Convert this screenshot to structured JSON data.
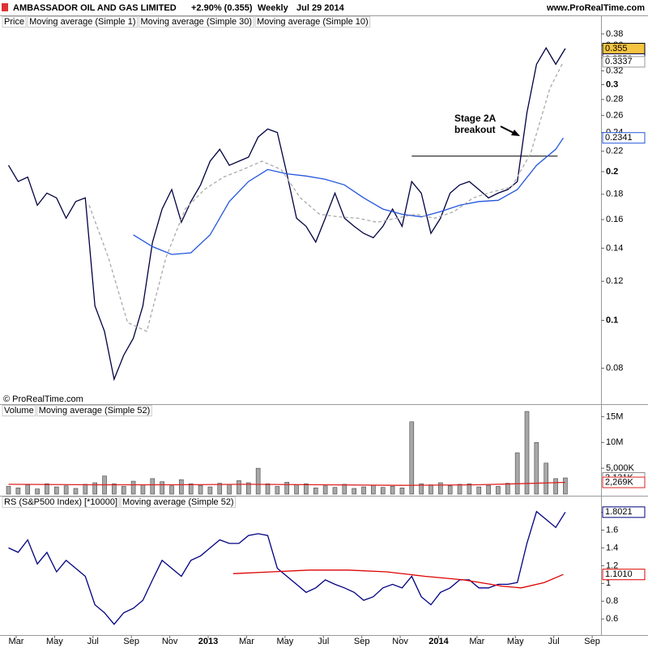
{
  "chart_data": [
    {
      "type": "line",
      "title": "AMBASSADOR OIL AND GAS LIMITED",
      "change": "+2.90% (0.355)",
      "period": "Weekly",
      "date": "Jul 29 2014",
      "source": "www.ProRealTime.com",
      "copyright": "© ProRealTime.com",
      "price_label": "Price",
      "log_scale": true,
      "xlim": [
        1.156,
        32.46
      ],
      "ylim": [
        0.07,
        0.393
      ],
      "yticks": [
        0.38,
        0.36,
        0.34,
        0.32,
        0.3,
        0.28,
        0.26,
        0.24,
        0.22,
        0.2,
        0.18,
        0.16,
        0.14,
        0.12,
        0.1,
        0.08
      ],
      "series": [
        {
          "name": "Moving average (Simple 1)",
          "color": "#000040",
          "style": "solid",
          "x": [
            1.6,
            2.1,
            2.6,
            3.1,
            3.6,
            4.1,
            4.6,
            5.1,
            5.6,
            6.1,
            6.6,
            7.1,
            7.6,
            8.1,
            8.6,
            9.1,
            9.6,
            10.1,
            10.6,
            11.1,
            11.6,
            12.1,
            12.6,
            13.1,
            13.6,
            14.1,
            14.6,
            15.1,
            15.6,
            16.1,
            16.6,
            17.1,
            17.6,
            18.1,
            18.6,
            19.1,
            19.6,
            20.1,
            20.6,
            21.1,
            21.6,
            22.1,
            22.6,
            23.1,
            23.6,
            24.1,
            24.6,
            25.1,
            25.6,
            26.1,
            26.6,
            27.1,
            27.6,
            28.1,
            28.6,
            29.1,
            29.6,
            30.1,
            30.6
          ],
          "values": [
            0.206,
            0.191,
            0.195,
            0.171,
            0.181,
            0.177,
            0.161,
            0.174,
            0.177,
            0.107,
            0.095,
            0.076,
            0.085,
            0.092,
            0.107,
            0.144,
            0.168,
            0.184,
            0.158,
            0.174,
            0.188,
            0.21,
            0.222,
            0.206,
            0.21,
            0.214,
            0.235,
            0.244,
            0.24,
            0.198,
            0.161,
            0.155,
            0.144,
            0.161,
            0.181,
            0.161,
            0.155,
            0.15,
            0.147,
            0.155,
            0.168,
            0.155,
            0.191,
            0.181,
            0.15,
            0.161,
            0.181,
            0.188,
            0.191,
            0.184,
            0.177,
            0.181,
            0.184,
            0.191,
            0.263,
            0.33,
            0.356,
            0.33,
            0.355
          ]
        },
        {
          "name": "Moving average (Simple 30)",
          "color": "#2255dd",
          "style": "solid",
          "x": [
            8.1,
            9.1,
            10.1,
            11.1,
            12.1,
            13.1,
            14.1,
            15.1,
            16.1,
            17.1,
            18.1,
            19.1,
            20.1,
            21.1,
            22.1,
            23.1,
            24.1,
            25.1,
            26.1,
            27.1,
            28.1,
            29.1,
            30.1,
            30.5
          ],
          "values": [
            0.149,
            0.141,
            0.136,
            0.137,
            0.149,
            0.174,
            0.191,
            0.202,
            0.198,
            0.196,
            0.193,
            0.188,
            0.177,
            0.168,
            0.164,
            0.162,
            0.166,
            0.171,
            0.174,
            0.175,
            0.184,
            0.206,
            0.222,
            0.2341
          ]
        },
        {
          "name": "Moving average (Simple 10)",
          "color": "#aaaaaa",
          "style": "dashed",
          "x": [
            5.8,
            6.8,
            7.8,
            8.8,
            9.8,
            10.8,
            11.8,
            12.8,
            13.8,
            14.8,
            15.8,
            16.8,
            17.8,
            18.8,
            19.8,
            20.8,
            21.8,
            22.8,
            23.8,
            24.8,
            25.8,
            26.8,
            27.8,
            28.8,
            29.8,
            30.5
          ],
          "values": [
            0.171,
            0.134,
            0.099,
            0.095,
            0.134,
            0.168,
            0.184,
            0.195,
            0.202,
            0.21,
            0.202,
            0.177,
            0.164,
            0.162,
            0.161,
            0.158,
            0.161,
            0.164,
            0.161,
            0.166,
            0.177,
            0.182,
            0.186,
            0.218,
            0.295,
            0.3337
          ]
        }
      ],
      "resistance": {
        "value": 0.215,
        "from": 22.6,
        "to": 30.2
      },
      "annotation": [
        "Stage 2A",
        "breakout"
      ],
      "last_labels": [
        {
          "value": 0.355,
          "label": "0.355",
          "color": "#000000",
          "fill": "#f5c542"
        },
        {
          "value": 0.355,
          "label": "0.3550",
          "color": "#000040"
        },
        {
          "value": 0.3337,
          "label": "0.3337",
          "color": "#999999"
        },
        {
          "value": 0.2341,
          "label": "0.2341",
          "color": "#2255dd"
        }
      ]
    },
    {
      "type": "bar",
      "legend_title": "Volume",
      "xlim": [
        1.156,
        32.46
      ],
      "ylim": [
        0,
        16000000
      ],
      "yticks": [
        {
          "value": 15000000,
          "label": "15M"
        },
        {
          "value": 10000000,
          "label": "10M"
        },
        {
          "value": 5000000,
          "label": "5,000K"
        }
      ],
      "series": [
        {
          "name": "Volume",
          "kind": "bar",
          "color": "#a8a8a8",
          "x": [
            1.6,
            2.1,
            2.6,
            3.1,
            3.6,
            4.1,
            4.6,
            5.1,
            5.6,
            6.1,
            6.6,
            7.1,
            7.6,
            8.1,
            8.6,
            9.1,
            9.6,
            10.1,
            10.6,
            11.1,
            11.6,
            12.1,
            12.6,
            13.1,
            13.6,
            14.1,
            14.6,
            15.1,
            15.6,
            16.1,
            16.6,
            17.1,
            17.6,
            18.1,
            18.6,
            19.1,
            19.6,
            20.1,
            20.6,
            21.1,
            21.6,
            22.1,
            22.6,
            23.1,
            23.6,
            24.1,
            24.6,
            25.1,
            25.6,
            26.1,
            26.6,
            27.1,
            27.6,
            28.1,
            28.6,
            29.1,
            29.6,
            30.1,
            30.6
          ],
          "values": [
            1500000,
            1200000,
            1800000,
            1000000,
            2000000,
            1400000,
            1600000,
            1100000,
            1900000,
            2200000,
            3500000,
            2000000,
            1500000,
            2500000,
            1800000,
            3000000,
            2400000,
            1600000,
            2800000,
            2000000,
            1700000,
            1400000,
            2100000,
            1900000,
            2600000,
            2200000,
            5000000,
            2000000,
            1500000,
            2300000,
            1800000,
            2000000,
            1200000,
            1600000,
            1300000,
            1900000,
            1100000,
            1400000,
            1700000,
            1300000,
            1500000,
            1200000,
            14000000,
            2000000,
            1800000,
            2200000,
            1600000,
            1900000,
            2000000,
            1400000,
            1700000,
            1500000,
            2100000,
            8000000,
            16000000,
            10000000,
            6000000,
            3000000,
            3131000
          ]
        },
        {
          "name": "Moving average (Simple 52)",
          "kind": "line",
          "color": "#dd2222",
          "x": [
            1.6,
            6,
            10,
            14,
            18,
            22,
            26,
            28,
            30.6
          ],
          "values": [
            1900000,
            1800000,
            1800000,
            1900000,
            1800000,
            1700000,
            1800000,
            2000000,
            2269000
          ]
        }
      ],
      "last_labels": [
        {
          "value": 3131000,
          "label": "3,131K",
          "color": "#888888"
        },
        {
          "value": 2269000,
          "label": "2,269K",
          "color": "#dd2222"
        }
      ]
    },
    {
      "type": "line",
      "xlim": [
        1.156,
        32.46
      ],
      "ylim": [
        0.41,
        1.96
      ],
      "yticks": [
        1.8,
        1.6,
        1.4,
        1.2,
        1,
        0.8,
        0.6
      ],
      "xticks": [
        {
          "value": 2,
          "label": "Mar"
        },
        {
          "value": 4,
          "label": "May"
        },
        {
          "value": 6,
          "label": "Jul"
        },
        {
          "value": 8,
          "label": "Sep"
        },
        {
          "value": 10,
          "label": "Nov"
        },
        {
          "value": 12,
          "label": "2013"
        },
        {
          "value": 14,
          "label": "Mar"
        },
        {
          "value": 16,
          "label": "May"
        },
        {
          "value": 18,
          "label": "Jul"
        },
        {
          "value": 20,
          "label": "Sep"
        },
        {
          "value": 22,
          "label": "Nov"
        },
        {
          "value": 24,
          "label": "2014"
        },
        {
          "value": 26,
          "label": "Mar"
        },
        {
          "value": 28,
          "label": "May"
        },
        {
          "value": 30,
          "label": "Jul"
        },
        {
          "value": 32,
          "label": "Sep"
        }
      ],
      "series": [
        {
          "name": "RS (S&P500 Index) [*10000]",
          "color": "#000080",
          "style": "solid",
          "x": [
            1.6,
            2.1,
            2.6,
            3.1,
            3.6,
            4.1,
            4.6,
            5.1,
            5.6,
            6.1,
            6.6,
            7.1,
            7.6,
            8.1,
            8.6,
            9.1,
            9.6,
            10.1,
            10.6,
            11.1,
            11.6,
            12.1,
            12.6,
            13.1,
            13.6,
            14.1,
            14.6,
            15.1,
            15.6,
            16.1,
            16.6,
            17.1,
            17.6,
            18.1,
            18.6,
            19.1,
            19.6,
            20.1,
            20.6,
            21.1,
            21.6,
            22.1,
            22.6,
            23.1,
            23.6,
            24.1,
            24.6,
            25.1,
            25.6,
            26.1,
            26.6,
            27.1,
            27.6,
            28.1,
            28.6,
            29.1,
            29.6,
            30.1,
            30.6
          ],
          "values": [
            1.4,
            1.35,
            1.49,
            1.22,
            1.35,
            1.13,
            1.26,
            1.17,
            1.08,
            0.76,
            0.67,
            0.54,
            0.67,
            0.72,
            0.81,
            1.04,
            1.26,
            1.17,
            1.08,
            1.26,
            1.31,
            1.4,
            1.49,
            1.45,
            1.45,
            1.54,
            1.56,
            1.54,
            1.17,
            1.08,
            0.99,
            0.9,
            0.95,
            1.04,
            0.99,
            0.95,
            0.9,
            0.81,
            0.85,
            0.95,
            0.99,
            0.95,
            1.08,
            0.85,
            0.76,
            0.9,
            0.95,
            1.04,
            1.04,
            0.95,
            0.95,
            0.99,
            0.99,
            1.01,
            1.45,
            1.81,
            1.72,
            1.63,
            1.8021
          ]
        },
        {
          "name": "Moving average (Simple 52)",
          "color": "#dd0000",
          "style": "solid",
          "x": [
            13.3,
            15.3,
            17.3,
            19.3,
            21.3,
            23.3,
            25.3,
            27.3,
            28.3,
            29.5,
            30.5
          ],
          "values": [
            1.11,
            1.13,
            1.15,
            1.15,
            1.13,
            1.08,
            1.04,
            0.97,
            0.95,
            1.01,
            1.101
          ]
        }
      ],
      "last_labels": [
        {
          "value": 1.8021,
          "label": "1.8021",
          "color": "#000080"
        },
        {
          "value": 1.101,
          "label": "1.1010",
          "color": "#dd0000"
        }
      ]
    }
  ]
}
